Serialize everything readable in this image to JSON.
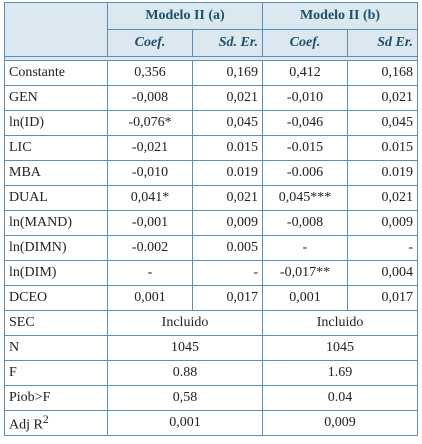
{
  "header": {
    "groups": [
      "Modelo II (a)",
      "Modelo II (b)"
    ],
    "subheaders": [
      "Coef.",
      "Sd. Er.",
      "Coef.",
      "Sd Er."
    ]
  },
  "rows": [
    [
      "Constante",
      "0,356",
      "0,169",
      "0,412",
      "0,168"
    ],
    [
      "GEN",
      "-0,008",
      "0,021",
      "-0,010",
      "0,021"
    ],
    [
      "ln(ID)",
      "-0,076*",
      "0,045",
      "-0,046",
      "0,045"
    ],
    [
      "LIC",
      "-0,021",
      "0.015",
      "-0.015",
      "0.015"
    ],
    [
      "MBA",
      "-0,010",
      "0.019",
      "-0.006",
      "0.019"
    ],
    [
      "DUAL",
      "0,041*",
      "0,021",
      "0,045***",
      "0,021"
    ],
    [
      "ln(MAND)",
      "-0,001",
      "0,009",
      "-0,008",
      "0,009"
    ],
    [
      "ln(DIMN)",
      "-0.002",
      "0.005",
      "-",
      "-"
    ],
    [
      "ln(DIM)",
      "-",
      "-",
      "-0,017**",
      "0,004"
    ],
    [
      "DCEO",
      "0,001",
      "0,017",
      "0,001",
      "0,017"
    ]
  ],
  "summary": [
    [
      "SEC",
      "Incluido",
      "Incluido"
    ],
    [
      "N",
      "1045",
      "1045"
    ],
    [
      "F",
      "0.88",
      "1.69"
    ],
    [
      "Piob>F",
      "0,58",
      "0.04"
    ]
  ],
  "adj": {
    "label": "Adj R",
    "sup": "2",
    "values": [
      "0,001",
      "0,009"
    ]
  }
}
